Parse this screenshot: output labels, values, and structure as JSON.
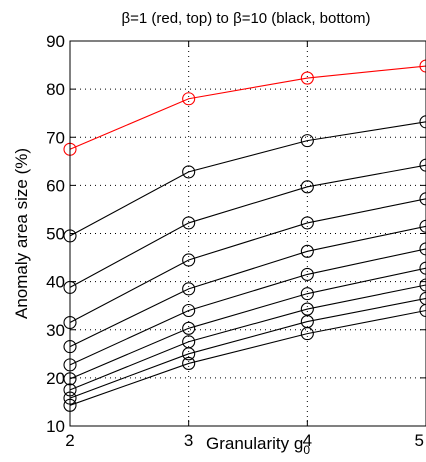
{
  "chart_data": {
    "type": "line",
    "title": "β=1 (red, top) to β=10 (black, bottom)",
    "xlabel": "Granularity g",
    "xlabel_sub": "0",
    "ylabel": "Anomaly area size (%)",
    "x": [
      2,
      3,
      4,
      5
    ],
    "xlim": [
      2,
      5
    ],
    "ylim": [
      10,
      90
    ],
    "xticks": [
      "2",
      "3",
      "4",
      "5"
    ],
    "yticks": [
      "10",
      "20",
      "30",
      "40",
      "50",
      "60",
      "70",
      "80",
      "90"
    ],
    "grid": "dotted",
    "series": [
      {
        "color": "#ff0000",
        "values": [
          67.5,
          78,
          82.3,
          84.8
        ]
      },
      {
        "color": "#000000",
        "values": [
          49.5,
          62.8,
          69.3,
          73.2
        ]
      },
      {
        "color": "#000000",
        "values": [
          38.8,
          52.2,
          59.7,
          64.2
        ]
      },
      {
        "color": "#000000",
        "values": [
          31.5,
          44.5,
          52.2,
          57.2
        ]
      },
      {
        "color": "#000000",
        "values": [
          26.5,
          38.5,
          46.3,
          51.5
        ]
      },
      {
        "color": "#000000",
        "values": [
          22.7,
          34.0,
          41.5,
          46.8
        ]
      },
      {
        "color": "#000000",
        "values": [
          19.8,
          30.3,
          37.5,
          42.8
        ]
      },
      {
        "color": "#000000",
        "values": [
          17.5,
          27.5,
          34.3,
          39.3
        ]
      },
      {
        "color": "#000000",
        "values": [
          15.8,
          25.0,
          31.7,
          36.5
        ]
      },
      {
        "color": "#000000",
        "values": [
          14.3,
          23.0,
          29.2,
          34.0
        ]
      }
    ]
  }
}
